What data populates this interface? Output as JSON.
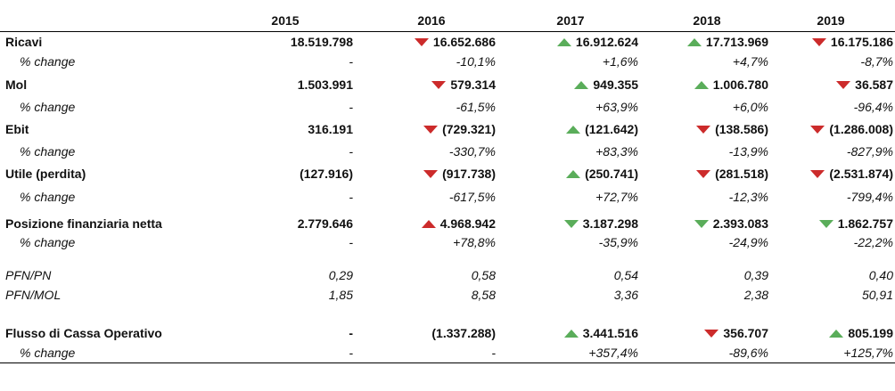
{
  "years": [
    "2015",
    "2016",
    "2017",
    "2018",
    "2019"
  ],
  "colors": {
    "increase": "#5aad5a",
    "decrease": "#cc2b2b"
  },
  "rows": {
    "ricavi": {
      "label": "Ricavi",
      "values": [
        "18.519.798",
        "16.652.686",
        "16.912.624",
        "17.713.969",
        "16.175.186"
      ],
      "icons": [
        "",
        "triangle-down-red-icon",
        "triangle-up-green-icon",
        "triangle-up-green-icon",
        "triangle-down-red-icon"
      ]
    },
    "ricavi_change": {
      "label": "% change",
      "values": [
        "-",
        "-10,1%",
        "+1,6%",
        "+4,7%",
        "-8,7%"
      ]
    },
    "mol": {
      "label": "Mol",
      "values": [
        "1.503.991",
        "579.314",
        "949.355",
        "1.006.780",
        "36.587"
      ],
      "icons": [
        "",
        "triangle-down-red-icon",
        "triangle-up-green-icon",
        "triangle-up-green-icon",
        "triangle-down-red-icon"
      ]
    },
    "mol_change": {
      "label": "% change",
      "values": [
        "-",
        "-61,5%",
        "+63,9%",
        "+6,0%",
        "-96,4%"
      ]
    },
    "ebit": {
      "label": "Ebit",
      "values": [
        "316.191",
        "(729.321)",
        "(121.642)",
        "(138.586)",
        "(1.286.008)"
      ],
      "icons": [
        "",
        "triangle-down-red-icon",
        "triangle-up-green-icon",
        "triangle-down-red-icon",
        "triangle-down-red-icon"
      ]
    },
    "ebit_change": {
      "label": "% change",
      "values": [
        "-",
        "-330,7%",
        "+83,3%",
        "-13,9%",
        "-827,9%"
      ]
    },
    "utile": {
      "label": "Utile (perdita)",
      "values": [
        "(127.916)",
        "(917.738)",
        "(250.741)",
        "(281.518)",
        "(2.531.874)"
      ],
      "icons": [
        "",
        "triangle-down-red-icon",
        "triangle-up-green-icon",
        "triangle-down-red-icon",
        "triangle-down-red-icon"
      ]
    },
    "utile_change": {
      "label": "% change",
      "values": [
        "-",
        "-617,5%",
        "+72,7%",
        "-12,3%",
        "-799,4%"
      ]
    },
    "pfn": {
      "label": "Posizione finanziaria netta",
      "values": [
        "2.779.646",
        "4.968.942",
        "3.187.298",
        "2.393.083",
        "1.862.757"
      ],
      "icons": [
        "",
        "triangle-up-red-icon",
        "triangle-down-green-icon",
        "triangle-down-green-icon",
        "triangle-down-green-icon"
      ]
    },
    "pfn_change": {
      "label": "% change",
      "values": [
        "-",
        "+78,8%",
        "-35,9%",
        "-24,9%",
        "-22,2%"
      ]
    },
    "pfn_pn": {
      "label": "PFN/PN",
      "values": [
        "0,29",
        "0,58",
        "0,54",
        "0,39",
        "0,40"
      ]
    },
    "pfn_mol": {
      "label": "PFN/MOL",
      "values": [
        "1,85",
        "8,58",
        "3,36",
        "2,38",
        "50,91"
      ]
    },
    "flusso": {
      "label": "Flusso di Cassa Operativo",
      "values": [
        "-",
        "(1.337.288)",
        "3.441.516",
        "356.707",
        "805.199"
      ],
      "icons": [
        "",
        "",
        "triangle-up-green-icon",
        "triangle-down-red-icon",
        "triangle-up-green-icon"
      ]
    },
    "flusso_change": {
      "label": "% change",
      "values": [
        "-",
        "-",
        "+357,4%",
        "-89,6%",
        "+125,7%"
      ]
    }
  }
}
